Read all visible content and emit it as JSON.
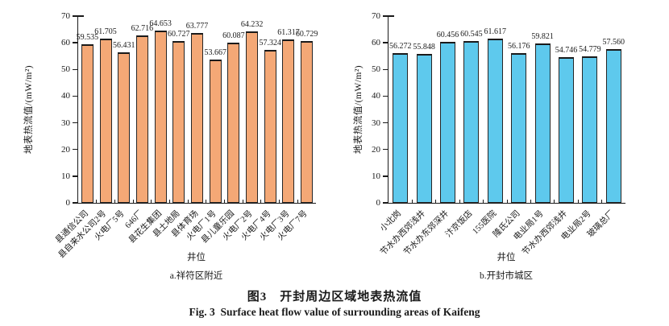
{
  "figure": {
    "caption_zh": "图3　开封周边区域地表热流值",
    "caption_en": "Fig. 3  Surface heat flow value of surrounding areas of Kaifeng"
  },
  "chart_data": [
    {
      "type": "bar",
      "subtitle": "a.祥符区附近",
      "xlabel": "井位",
      "ylabel": "地表热流值/(mW/m²)",
      "ylim": [
        0,
        70
      ],
      "yticks": [
        0,
        10,
        20,
        30,
        40,
        50,
        60,
        70
      ],
      "grid": false,
      "legend": "none",
      "bar_color": "#F4A876",
      "bar_border_color": "#262626",
      "categories": [
        "县通信公司",
        "县自来水公司2号",
        "火电厂5号",
        "646厂",
        "县花生集团",
        "县土地局",
        "县体育场",
        "火电厂1号",
        "县儿童乐园",
        "火电厂2号",
        "火电厂4号",
        "火电厂3号",
        "火电厂7号"
      ],
      "values": [
        59.535,
        61.705,
        56.431,
        62.716,
        64.653,
        60.727,
        63.777,
        53.667,
        60.087,
        64.232,
        57.324,
        61.317,
        60.729
      ]
    },
    {
      "type": "bar",
      "subtitle": "b.开封市城区",
      "xlabel": "井位",
      "ylabel": "地表热流值/(mW/m²)",
      "ylim": [
        0,
        70
      ],
      "yticks": [
        0,
        10,
        20,
        30,
        40,
        50,
        60,
        70
      ],
      "grid": false,
      "legend": "none",
      "bar_color": "#5EC9ED",
      "bar_border_color": "#262626",
      "categories": [
        "小北岗",
        "节水办西郊浅井",
        "节水办东郊深井",
        "汴京饭店",
        "155医院",
        "隆氏公司",
        "电业局1号",
        "节水办西郊浅井",
        "电业局2号",
        "玻璃总厂"
      ],
      "values": [
        56.272,
        55.848,
        60.456,
        60.545,
        61.617,
        56.176,
        59.821,
        54.746,
        54.779,
        57.56
      ]
    }
  ]
}
